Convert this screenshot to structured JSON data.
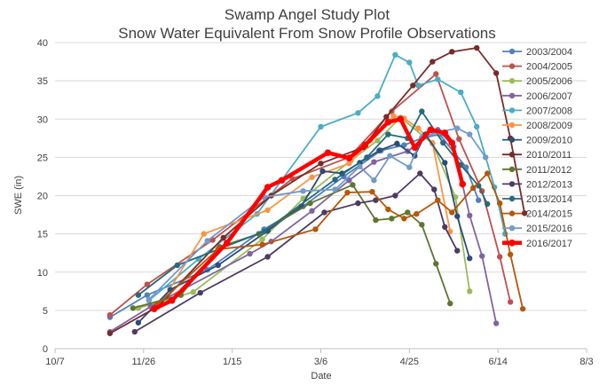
{
  "chart_data": {
    "type": "line",
    "title": [
      "Swamp Angel Study Plot",
      "Snow Water Equivalent From Snow Profile Observations"
    ],
    "xlabel": "Date",
    "ylabel": "SWE (in)",
    "x_unit": "day of water year (Oct 1 = 0)",
    "xlim": [
      6,
      306
    ],
    "ylim": [
      0,
      40
    ],
    "x_ticks": [
      {
        "value": 6,
        "label": "10/7"
      },
      {
        "value": 56,
        "label": "11/26"
      },
      {
        "value": 106,
        "label": "1/15"
      },
      {
        "value": 156,
        "label": "3/6"
      },
      {
        "value": 206,
        "label": "4/25"
      },
      {
        "value": 256,
        "label": "6/14"
      },
      {
        "value": 306,
        "label": "8/3"
      }
    ],
    "y_ticks": [
      0,
      5,
      10,
      15,
      20,
      25,
      30,
      35,
      40
    ],
    "gridlines": "horizontal",
    "legend_position": "right",
    "series": [
      {
        "name": "2003/2004",
        "color": "#4F81BD",
        "points": [
          [
            37,
            4.1
          ],
          [
            58,
            7.0
          ],
          [
            92,
            10.3
          ],
          [
            124,
            15.6
          ],
          [
            146,
            18.6
          ],
          [
            169,
            22.5
          ],
          [
            190,
            25.9
          ],
          [
            203,
            26.6
          ],
          [
            213,
            27.5
          ],
          [
            223,
            28.0
          ],
          [
            238,
            23.7
          ],
          [
            245,
            19.4
          ]
        ]
      },
      {
        "name": "2004/2005",
        "color": "#C0504D",
        "points": [
          [
            37,
            4.4
          ],
          [
            58,
            8.4
          ],
          [
            95,
            14.2
          ],
          [
            140,
            22.2
          ],
          [
            172,
            25.0
          ],
          [
            196,
            31.0
          ],
          [
            221,
            35.9
          ],
          [
            234,
            27.4
          ],
          [
            247,
            20.6
          ],
          [
            257,
            12.0
          ],
          [
            263,
            6.1
          ]
        ]
      },
      {
        "name": "2005/2006",
        "color": "#9BBB59",
        "points": [
          [
            53,
            5.3
          ],
          [
            84,
            7.4
          ],
          [
            123,
            14.3
          ],
          [
            146,
            19.6
          ],
          [
            173,
            24.6
          ],
          [
            188,
            27.2
          ],
          [
            201,
            30.2
          ],
          [
            219,
            26.8
          ],
          [
            232,
            19.8
          ],
          [
            240,
            7.5
          ]
        ]
      },
      {
        "name": "2006/2007",
        "color": "#8064A2",
        "points": [
          [
            37,
            2.2
          ],
          [
            60,
            5.5
          ],
          [
            116,
            12.4
          ],
          [
            128,
            14.0
          ],
          [
            151,
            18.0
          ],
          [
            172,
            22.0
          ],
          [
            186,
            24.4
          ],
          [
            205,
            25.8
          ],
          [
            222,
            28.6
          ],
          [
            231,
            26.4
          ],
          [
            240,
            17.4
          ],
          [
            247,
            12.1
          ],
          [
            255,
            3.3
          ]
        ]
      },
      {
        "name": "2007/2008",
        "color": "#4BACC6",
        "points": [
          [
            59,
            6.3
          ],
          [
            87,
            11.7
          ],
          [
            120,
            17.6
          ],
          [
            156,
            29.0
          ],
          [
            177,
            30.8
          ],
          [
            188,
            33.0
          ],
          [
            198,
            38.4
          ],
          [
            206,
            37.4
          ],
          [
            211,
            34.4
          ],
          [
            222,
            35.2
          ],
          [
            235,
            33.5
          ],
          [
            244,
            29.0
          ],
          [
            254,
            21.1
          ],
          [
            260,
            15.0
          ]
        ]
      },
      {
        "name": "2008/2009",
        "color": "#F79646",
        "points": [
          [
            66,
            6.0
          ],
          [
            90,
            15.0
          ],
          [
            126,
            18.1
          ],
          [
            151,
            22.4
          ],
          [
            172,
            24.2
          ],
          [
            184,
            27.2
          ],
          [
            197,
            30.4
          ],
          [
            203,
            30.1
          ],
          [
            211,
            28.8
          ],
          [
            219,
            26.9
          ],
          [
            229,
            15.3
          ]
        ]
      },
      {
        "name": "2009/2010",
        "color": "#2C4D75",
        "points": [
          [
            53,
            3.4
          ],
          [
            71,
            7.7
          ],
          [
            98,
            10.9
          ],
          [
            126,
            15.4
          ],
          [
            145,
            18.6
          ],
          [
            157,
            23.2
          ],
          [
            168,
            22.9
          ],
          [
            178,
            24.3
          ],
          [
            189,
            25.9
          ],
          [
            199,
            26.8
          ],
          [
            209,
            25.2
          ],
          [
            215,
            28.0
          ],
          [
            226,
            24.3
          ],
          [
            233,
            17.3
          ],
          [
            240,
            11.8
          ]
        ]
      },
      {
        "name": "2010/2011",
        "color": "#772C2A",
        "points": [
          [
            37,
            2.0
          ],
          [
            64,
            5.5
          ],
          [
            101,
            14.5
          ],
          [
            128,
            20.0
          ],
          [
            156,
            24.2
          ],
          [
            180,
            26.3
          ],
          [
            193,
            30.3
          ],
          [
            208,
            34.4
          ],
          [
            219,
            37.5
          ],
          [
            230,
            38.8
          ],
          [
            244,
            39.3
          ],
          [
            255,
            36.0
          ],
          [
            263,
            27.5
          ],
          [
            271,
            17.7
          ]
        ]
      },
      {
        "name": "2011/2012",
        "color": "#5F7530",
        "points": [
          [
            50,
            5.3
          ],
          [
            77,
            7.0
          ],
          [
            99,
            13.3
          ],
          [
            121,
            15.0
          ],
          [
            150,
            19.0
          ],
          [
            174,
            21.4
          ],
          [
            187,
            16.8
          ],
          [
            196,
            17.0
          ],
          [
            205,
            17.8
          ],
          [
            213,
            16.2
          ],
          [
            221,
            11.1
          ],
          [
            229,
            5.9
          ]
        ]
      },
      {
        "name": "2012/2013",
        "color": "#4D3B62",
        "points": [
          [
            51,
            2.2
          ],
          [
            88,
            7.3
          ],
          [
            126,
            12.0
          ],
          [
            158,
            17.8
          ],
          [
            177,
            19.0
          ],
          [
            187,
            19.4
          ],
          [
            198,
            20.0
          ],
          [
            212,
            22.9
          ],
          [
            220,
            20.8
          ],
          [
            226,
            15.9
          ],
          [
            233,
            12.8
          ]
        ]
      },
      {
        "name": "2013/2014",
        "color": "#276A7C",
        "points": [
          [
            53,
            7.0
          ],
          [
            75,
            10.9
          ],
          [
            124,
            15.3
          ],
          [
            164,
            22.1
          ],
          [
            182,
            25.0
          ],
          [
            194,
            28.0
          ],
          [
            205,
            27.5
          ],
          [
            213,
            31.0
          ],
          [
            225,
            26.9
          ],
          [
            235,
            24.0
          ],
          [
            245,
            21.3
          ],
          [
            250,
            18.9
          ]
        ]
      },
      {
        "name": "2014/2015",
        "color": "#B65708",
        "points": [
          [
            64,
            5.8
          ],
          [
            98,
            13.0
          ],
          [
            123,
            13.6
          ],
          [
            153,
            15.6
          ],
          [
            171,
            20.4
          ],
          [
            185,
            20.5
          ],
          [
            194,
            18.2
          ],
          [
            203,
            17.0
          ],
          [
            210,
            17.6
          ],
          [
            222,
            19.4
          ],
          [
            230,
            17.8
          ],
          [
            242,
            21.0
          ],
          [
            250,
            22.9
          ],
          [
            257,
            19.0
          ],
          [
            263,
            12.3
          ],
          [
            270,
            5.2
          ]
        ]
      },
      {
        "name": "2015/2016",
        "color": "#729ACA",
        "points": [
          [
            59,
            6.4
          ],
          [
            92,
            14.1
          ],
          [
            124,
            19.8
          ],
          [
            146,
            20.6
          ],
          [
            164,
            20.8
          ],
          [
            178,
            23.8
          ],
          [
            186,
            22.0
          ],
          [
            195,
            25.2
          ],
          [
            206,
            23.7
          ],
          [
            213,
            27.6
          ],
          [
            223,
            28.3
          ],
          [
            233,
            28.8
          ],
          [
            240,
            28.0
          ],
          [
            249,
            25.0
          ]
        ]
      },
      {
        "name": "2016/2017",
        "color": "#FF0000",
        "bold": true,
        "points": [
          [
            62,
            5.2
          ],
          [
            72,
            6.3
          ],
          [
            103,
            13.8
          ],
          [
            126,
            21.1
          ],
          [
            134,
            22.0
          ],
          [
            160,
            25.6
          ],
          [
            172,
            24.9
          ],
          [
            181,
            26.6
          ],
          [
            194,
            29.6
          ],
          [
            201,
            30.0
          ],
          [
            209,
            26.3
          ],
          [
            218,
            28.6
          ],
          [
            226,
            28.2
          ],
          [
            230,
            26.9
          ],
          [
            236,
            21.5
          ]
        ]
      }
    ]
  }
}
